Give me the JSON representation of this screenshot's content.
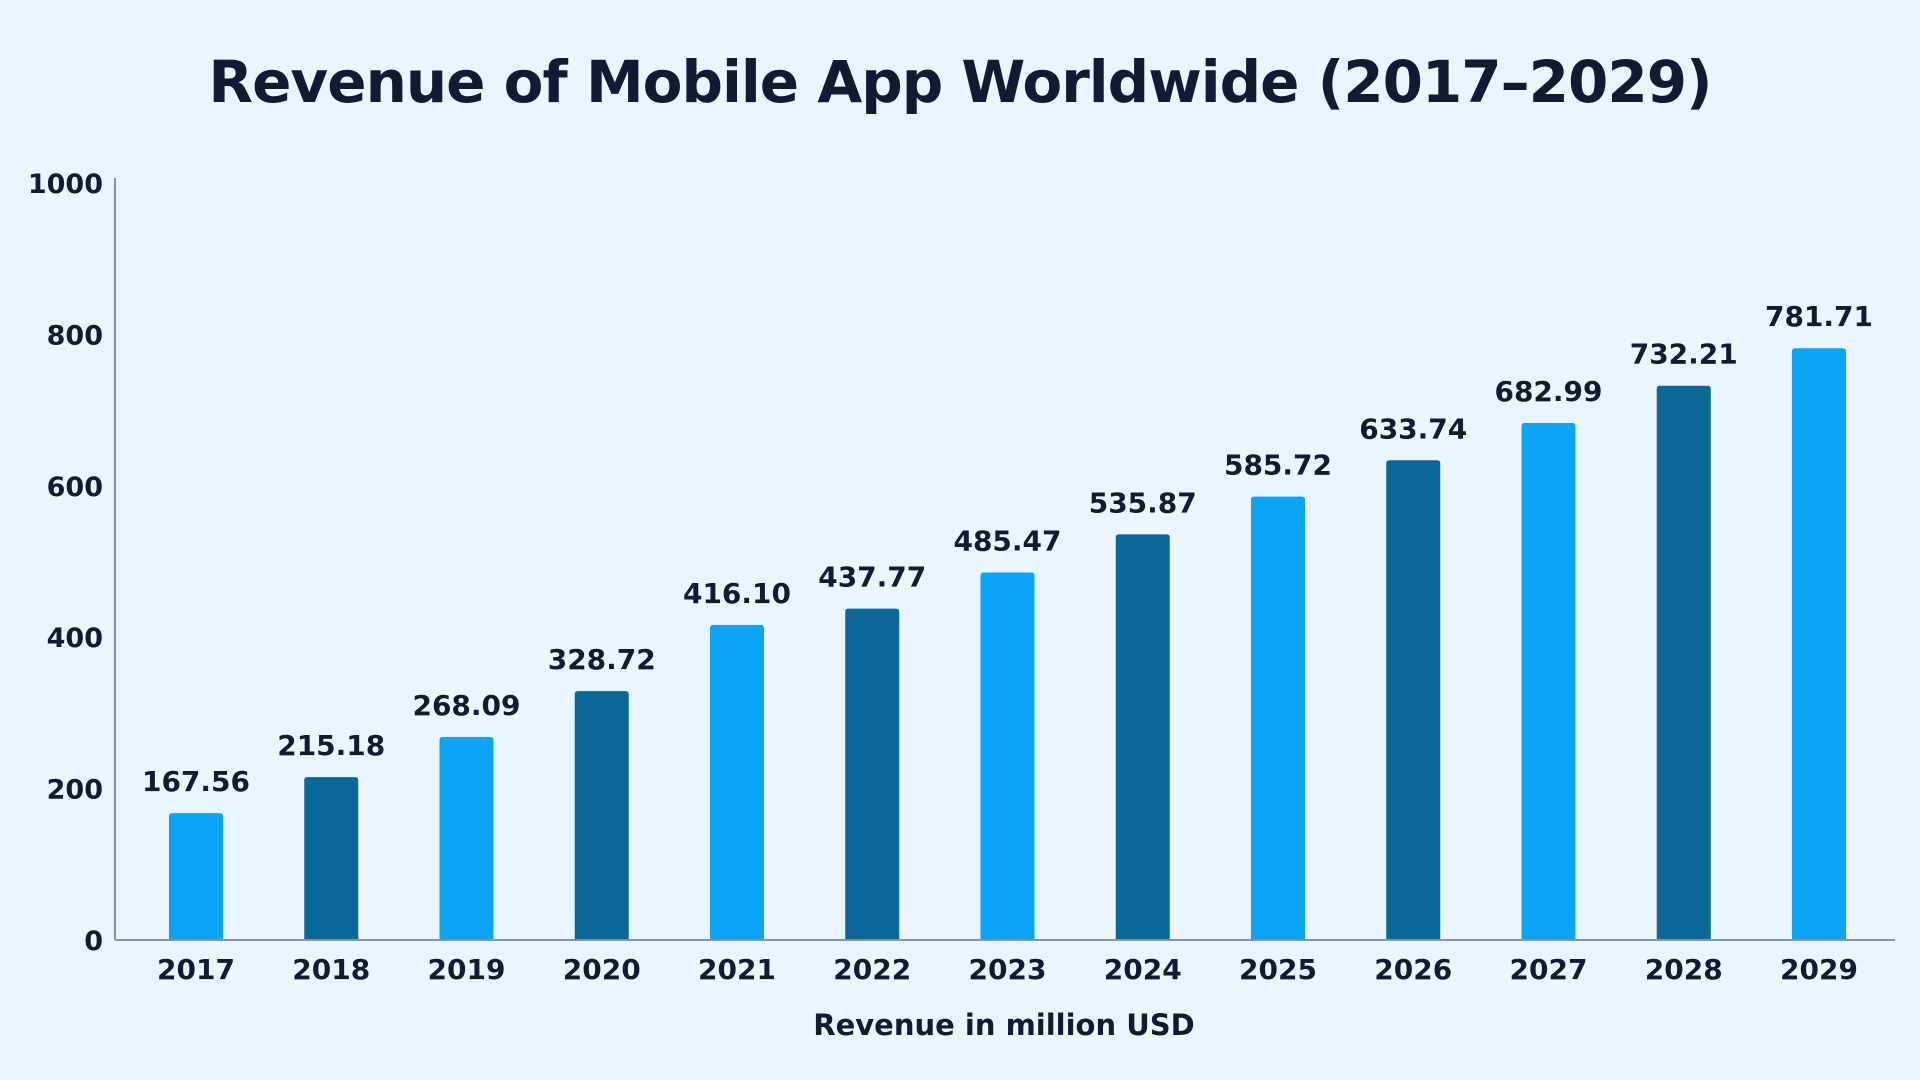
{
  "chart_data": {
    "type": "bar",
    "title": "Revenue of Mobile App Worldwide (2017–2029)",
    "xlabel": "Revenue in million USD",
    "ylabel": "",
    "ylim": [
      0,
      1000
    ],
    "yticks": [
      0,
      200,
      400,
      600,
      800,
      1000
    ],
    "grid": false,
    "categories": [
      "2017",
      "2018",
      "2019",
      "2020",
      "2021",
      "2022",
      "2023",
      "2024",
      "2025",
      "2026",
      "2027",
      "2028",
      "2029"
    ],
    "values": [
      167.56,
      215.18,
      268.09,
      328.72,
      416.1,
      437.77,
      485.47,
      535.87,
      585.72,
      633.74,
      682.99,
      732.21,
      781.71
    ],
    "value_labels": [
      "167.56",
      "215.18",
      "268.09",
      "328.72",
      "416.10",
      "437.77",
      "485.47",
      "535.87",
      "585.72",
      "633.74",
      "682.99",
      "732.21",
      "781.71"
    ],
    "bar_colors": [
      "#0aa5f5",
      "#0b6798",
      "#0aa5f5",
      "#0b6798",
      "#0aa5f5",
      "#0b6798",
      "#0aa5f5",
      "#0b6798",
      "#0aa5f5",
      "#0b6798",
      "#0aa5f5",
      "#0b6798",
      "#0aa5f5"
    ]
  },
  "colors": {
    "background": "#e9f6fe",
    "text": "#111a33",
    "axis": "#8a93a6"
  }
}
